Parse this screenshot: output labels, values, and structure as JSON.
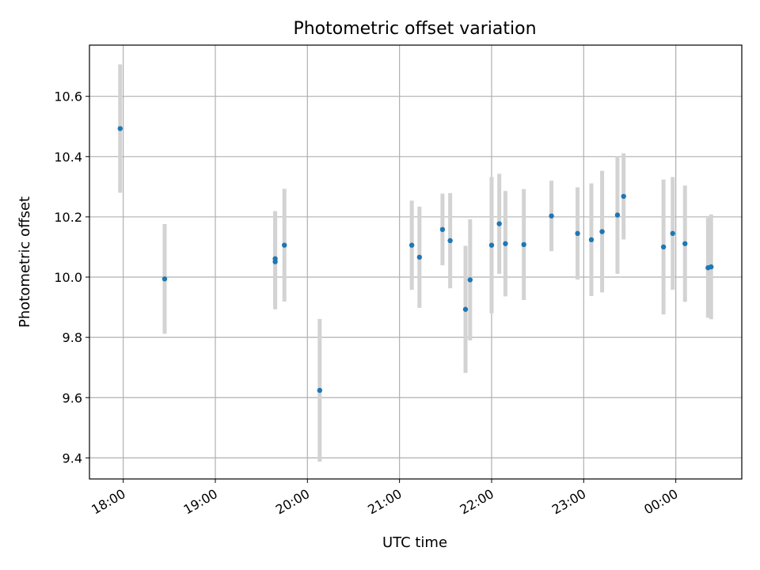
{
  "chart_data": {
    "type": "scatter",
    "title": "Photometric offset variation",
    "xlabel": "UTC time",
    "ylabel": "Photometric offset",
    "grid": true,
    "x_tick_labels": [
      "18:00",
      "19:00",
      "20:00",
      "21:00",
      "22:00",
      "23:00",
      "00:00"
    ],
    "y_tick_labels": [
      "9.4",
      "9.6",
      "9.8",
      "10.0",
      "10.2",
      "10.4",
      "10.6"
    ],
    "y_ticks": [
      9.4,
      9.6,
      9.8,
      10.0,
      10.2,
      10.4,
      10.6
    ],
    "ylim": [
      9.33,
      10.77
    ],
    "xlim": [
      "17:38",
      "00:43"
    ],
    "colors": {
      "points": "#1f77b4",
      "errorbars": "#d3d3d3",
      "grid": "#b0b0b0"
    },
    "points": [
      {
        "time": "17:58",
        "y": 10.493,
        "err": 0.213
      },
      {
        "time": "18:27",
        "y": 9.994,
        "err": 0.182
      },
      {
        "time": "19:39",
        "y": 10.061,
        "err": 0.158
      },
      {
        "time": "19:39",
        "y": 10.051,
        "err": 0.158
      },
      {
        "time": "19:45",
        "y": 10.106,
        "err": 0.187
      },
      {
        "time": "20:08",
        "y": 9.624,
        "err": 0.237
      },
      {
        "time": "21:08",
        "y": 10.106,
        "err": 0.148
      },
      {
        "time": "21:13",
        "y": 10.066,
        "err": 0.168
      },
      {
        "time": "21:28",
        "y": 10.158,
        "err": 0.119
      },
      {
        "time": "21:33",
        "y": 10.121,
        "err": 0.158
      },
      {
        "time": "21:43",
        "y": 9.893,
        "err": 0.211
      },
      {
        "time": "21:46",
        "y": 9.991,
        "err": 0.201
      },
      {
        "time": "22:00",
        "y": 10.106,
        "err": 0.226
      },
      {
        "time": "22:05",
        "y": 10.177,
        "err": 0.166
      },
      {
        "time": "22:09",
        "y": 10.111,
        "err": 0.175
      },
      {
        "time": "22:21",
        "y": 10.108,
        "err": 0.184
      },
      {
        "time": "22:39",
        "y": 10.203,
        "err": 0.117
      },
      {
        "time": "22:56",
        "y": 10.145,
        "err": 0.153
      },
      {
        "time": "23:05",
        "y": 10.124,
        "err": 0.187
      },
      {
        "time": "23:12",
        "y": 10.151,
        "err": 0.202
      },
      {
        "time": "23:22",
        "y": 10.206,
        "err": 0.195
      },
      {
        "time": "23:26",
        "y": 10.268,
        "err": 0.143
      },
      {
        "time": "23:52",
        "y": 10.1,
        "err": 0.224
      },
      {
        "time": "23:58",
        "y": 10.145,
        "err": 0.187
      },
      {
        "time": "00:06",
        "y": 10.111,
        "err": 0.193
      },
      {
        "time": "00:21",
        "y": 10.031,
        "err": 0.166
      },
      {
        "time": "00:23",
        "y": 10.034,
        "err": 0.174
      }
    ]
  }
}
